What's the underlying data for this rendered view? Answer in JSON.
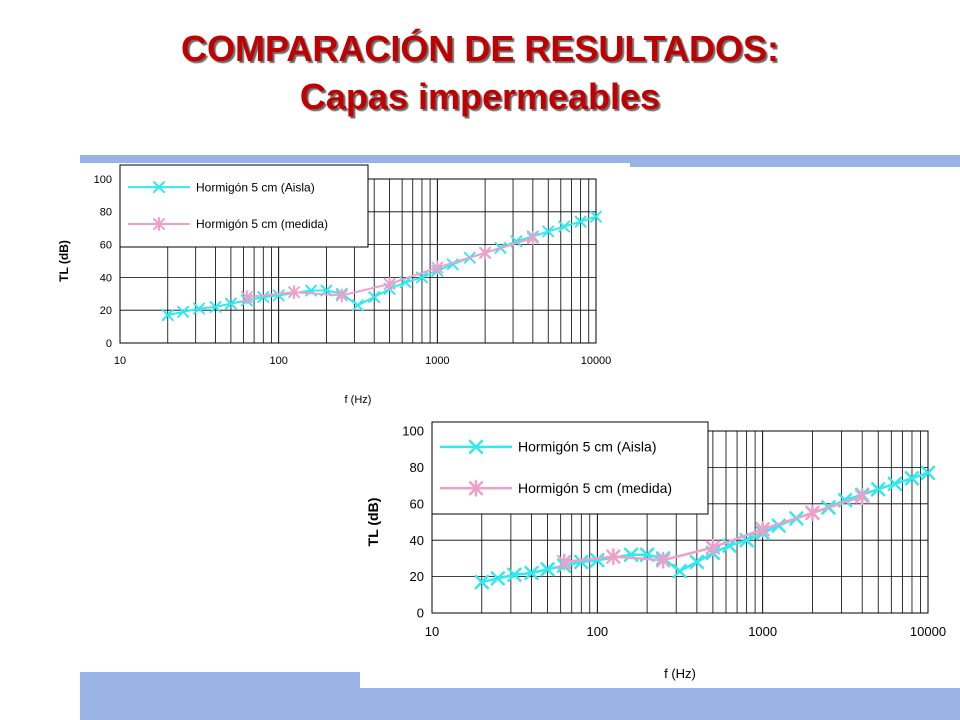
{
  "slide": {
    "title_line1": "COMPARACIÓN DE RESULTADOS:",
    "title_line2": "Capas impermeables",
    "title_color": "#c00000",
    "band_color": "#99b3e6"
  },
  "chart_data": [
    {
      "type": "line",
      "xscale": "log",
      "xlim": [
        10,
        10000
      ],
      "ylim": [
        0,
        100
      ],
      "xticks": [
        "10",
        "100",
        "1000",
        "10000"
      ],
      "yticks": [
        "0",
        "20",
        "40",
        "60",
        "80",
        "100"
      ],
      "xlabel": "f (Hz)",
      "ylabel": "TL (dB)",
      "grid": true,
      "legend_position": "top-left",
      "series": [
        {
          "name": "Hormigón 5 cm (Aisla)",
          "color": "#33e8f0",
          "marker": "x",
          "x": [
            20,
            25,
            31.5,
            40,
            50,
            63,
            80,
            100,
            160,
            200,
            250,
            315,
            400,
            500,
            630,
            800,
            1000,
            1250,
            1600,
            2000,
            2500,
            3150,
            4000,
            5000,
            6300,
            8000,
            10000
          ],
          "y": [
            17,
            19,
            21,
            22,
            24,
            26,
            28,
            29,
            32,
            32,
            30,
            23,
            28,
            33,
            37,
            40,
            44,
            48,
            52,
            55,
            58,
            62,
            65,
            68,
            71,
            74,
            77
          ]
        },
        {
          "name": "Hormigón 5 cm (medida)",
          "color": "#f0a0c8",
          "marker": "*",
          "x": [
            63,
            125,
            250,
            500,
            1000,
            2000,
            4000
          ],
          "y": [
            28,
            31,
            29,
            36,
            46,
            55,
            64
          ]
        }
      ]
    },
    {
      "type": "line",
      "xscale": "log",
      "xlim": [
        10,
        10000
      ],
      "ylim": [
        0,
        100
      ],
      "xticks": [
        "10",
        "100",
        "1000",
        "10000"
      ],
      "yticks": [
        "0",
        "20",
        "40",
        "60",
        "80",
        "100"
      ],
      "xlabel": "f (Hz)",
      "ylabel": "TL (dB)",
      "grid": true,
      "legend_position": "top-left",
      "series": [
        {
          "name": "Hormigón 5 cm (Aisla)",
          "color": "#33e8f0",
          "marker": "x",
          "x": [
            20,
            25,
            31.5,
            40,
            50,
            63,
            80,
            100,
            160,
            200,
            250,
            315,
            400,
            500,
            630,
            800,
            1000,
            1250,
            1600,
            2000,
            2500,
            3150,
            4000,
            5000,
            6300,
            8000,
            10000
          ],
          "y": [
            17,
            19,
            21,
            22,
            24,
            26,
            28,
            29,
            32,
            32,
            30,
            23,
            28,
            33,
            37,
            40,
            44,
            48,
            52,
            55,
            58,
            62,
            65,
            68,
            71,
            74,
            77
          ]
        },
        {
          "name": "Hormigón 5 cm (medida)",
          "color": "#f0a0c8",
          "marker": "*",
          "x": [
            63,
            125,
            250,
            500,
            1000,
            2000,
            4000
          ],
          "y": [
            28,
            31,
            29,
            36,
            46,
            55,
            64
          ]
        }
      ]
    }
  ]
}
